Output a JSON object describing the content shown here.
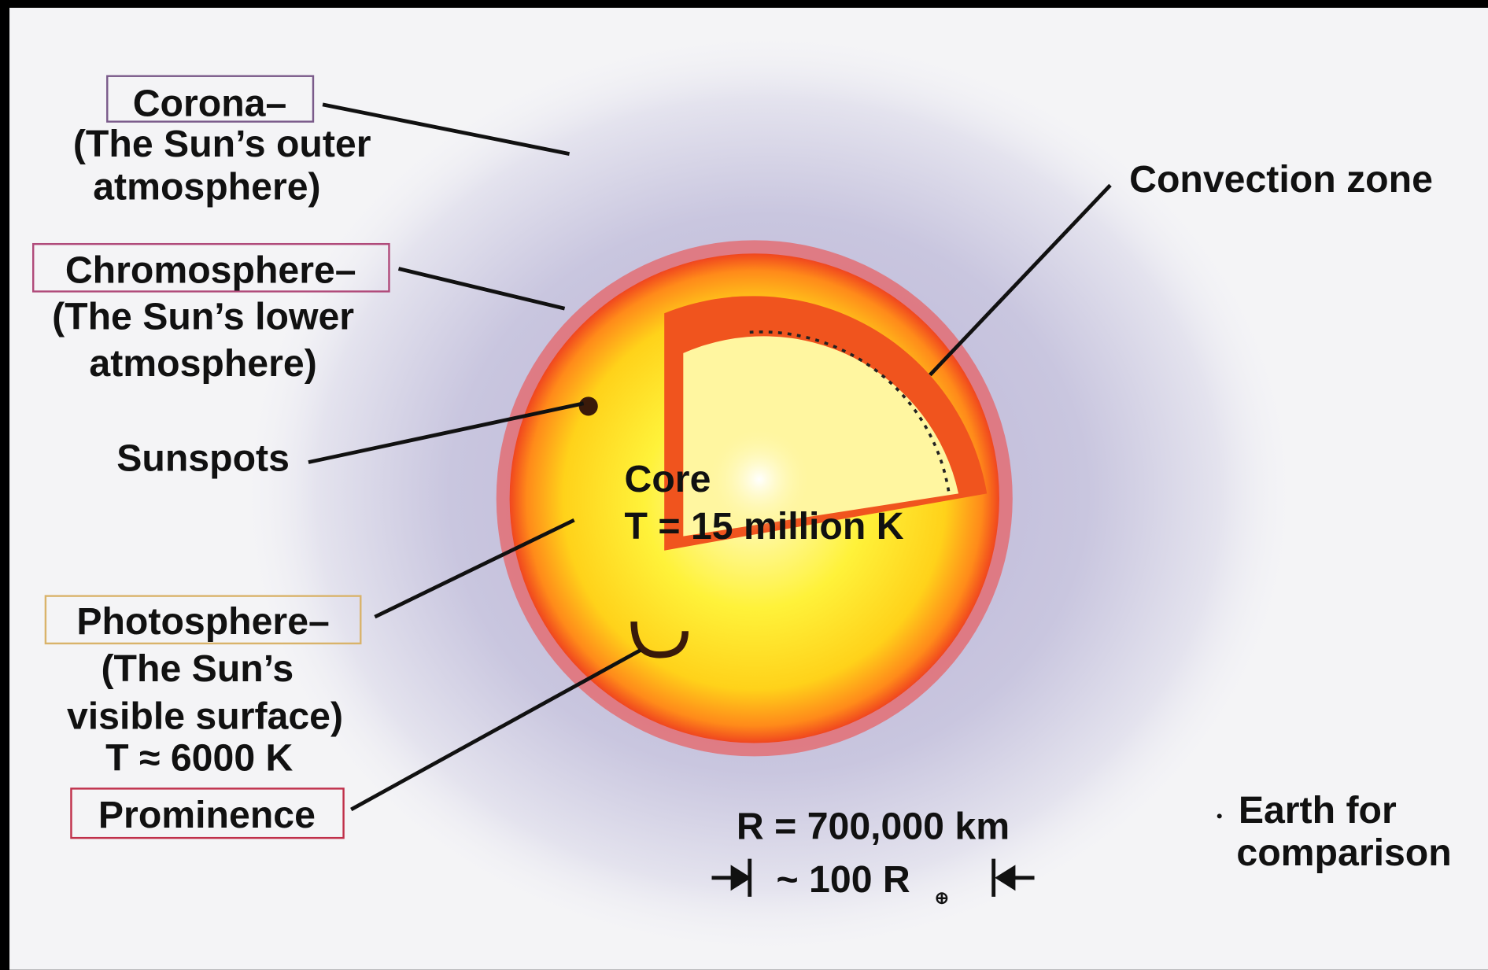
{
  "labels": [
    {
      "title": "Corona–",
      "lines": [
        "(The Sun’s outer",
        "atmosphere)"
      ]
    },
    {
      "title": "Chromosphere–",
      "lines": [
        "(The Sun’s lower",
        "atmosphere)"
      ]
    },
    {
      "title": "Sunspots"
    },
    {
      "title": "Photosphere–",
      "lines": [
        "(The Sun’s",
        "visible surface)",
        "T ≈ 6000 K"
      ]
    },
    {
      "title": "Prominence"
    },
    {
      "title": "Convection zone"
    },
    {
      "title": "Core",
      "lines": [
        "T = 15 million K"
      ]
    }
  ],
  "scale": {
    "radius": "R = 700,000 km",
    "size": "~ 100 R",
    "size_subscript": "⊕"
  },
  "earth": {
    "lines": [
      "Earth for",
      "comparison"
    ]
  }
}
